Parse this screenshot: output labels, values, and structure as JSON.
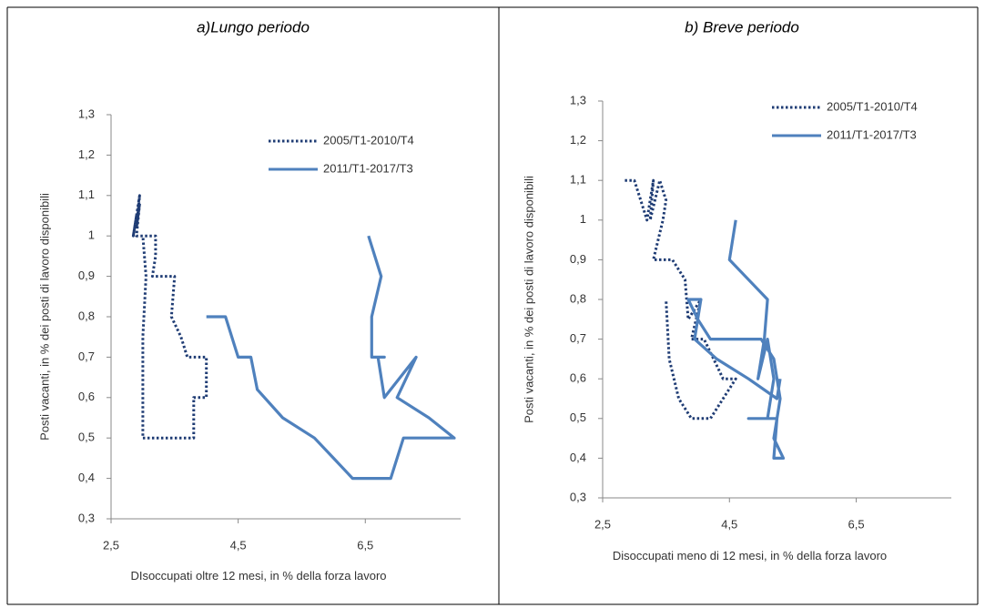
{
  "chart_data": [
    {
      "type": "line",
      "title": "a)Lungo periodo",
      "x_label": "DIsoccupati oltre 12 mesi, in % della forza lavoro",
      "y_label": "Posti vacanti, in % dei posti di lavoro disponibili",
      "xlim": [
        2.5,
        8.0
      ],
      "xticks": [
        {
          "value": 2.5,
          "label": "2,5"
        },
        {
          "value": 4.5,
          "label": "4,5"
        },
        {
          "value": 6.5,
          "label": "6,5"
        }
      ],
      "ylim": [
        0.3,
        1.3
      ],
      "yticks": [
        {
          "value": 0.3,
          "label": "0,3"
        },
        {
          "value": 0.4,
          "label": "0,4"
        },
        {
          "value": 0.5,
          "label": "0,5"
        },
        {
          "value": 0.6,
          "label": "0,6"
        },
        {
          "value": 0.7,
          "label": "0,7"
        },
        {
          "value": 0.8,
          "label": "0,8"
        },
        {
          "value": 0.9,
          "label": "0,9"
        },
        1,
        {
          "value": 1.1,
          "label": "1,1"
        },
        {
          "value": 1.2,
          "label": "1,2"
        },
        {
          "value": 1.3,
          "label": "1,3"
        }
      ],
      "legend": "upper right",
      "series": [
        {
          "name": "2005/T1-2010/T4",
          "color": "#1f3c74",
          "style": "dotted",
          "x": [
            2.9,
            2.85,
            2.95,
            2.9,
            2.95,
            2.9,
            3.1,
            3.2,
            3.2,
            3.15,
            3.5,
            3.45,
            3.6,
            3.7,
            4.0,
            4.0,
            3.8,
            3.8,
            3.5,
            3.0,
            3.0,
            3.0,
            3.05,
            3.0
          ],
          "values": [
            1.05,
            1.0,
            1.1,
            1.02,
            1.08,
            1.0,
            1.0,
            1.0,
            0.95,
            0.9,
            0.9,
            0.8,
            0.75,
            0.7,
            0.7,
            0.6,
            0.6,
            0.5,
            0.5,
            0.5,
            0.6,
            0.75,
            0.9,
            1.0
          ]
        },
        {
          "name": "2011/T1-2017/T3",
          "color": "#4f81bd",
          "style": "solid",
          "x": [
            4.0,
            4.3,
            4.5,
            4.7,
            4.8,
            5.2,
            5.7,
            6.0,
            6.3,
            6.6,
            6.9,
            7.1,
            7.4,
            7.9,
            7.5,
            7.0,
            7.3,
            6.8,
            6.7,
            6.8,
            6.6,
            6.6,
            6.75,
            6.55
          ],
          "values": [
            0.8,
            0.8,
            0.7,
            0.7,
            0.62,
            0.55,
            0.5,
            0.45,
            0.4,
            0.4,
            0.4,
            0.5,
            0.5,
            0.5,
            0.55,
            0.6,
            0.7,
            0.6,
            0.7,
            0.7,
            0.7,
            0.8,
            0.9,
            1.0
          ]
        }
      ]
    },
    {
      "type": "line",
      "title": "b) Breve periodo",
      "x_label": "Disoccupati meno di 12 mesi, in % della forza lavoro",
      "y_label": "Posti vacanti, in % dei posti di lavoro disponibili",
      "xlim": [
        2.5,
        8.0
      ],
      "xticks": [
        {
          "value": 2.5,
          "label": "2,5"
        },
        {
          "value": 4.5,
          "label": "4,5"
        },
        {
          "value": 6.5,
          "label": "6,5"
        }
      ],
      "ylim": [
        0.3,
        1.3
      ],
      "yticks": [
        {
          "value": 0.3,
          "label": "0,3"
        },
        {
          "value": 0.4,
          "label": "0,4"
        },
        {
          "value": 0.5,
          "label": "0,5"
        },
        {
          "value": 0.6,
          "label": "0,6"
        },
        {
          "value": 0.7,
          "label": "0,7"
        },
        {
          "value": 0.8,
          "label": "0,8"
        },
        {
          "value": 0.9,
          "label": "0,9"
        },
        1,
        {
          "value": 1.1,
          "label": "1,1"
        },
        {
          "value": 1.2,
          "label": "1,2"
        },
        {
          "value": 1.3,
          "label": "1,3"
        }
      ],
      "legend": "upper right",
      "series": [
        {
          "name": "2005/T1-2010/T4",
          "color": "#1f3c74",
          "style": "dotted",
          "x": [
            2.85,
            3.0,
            3.1,
            3.2,
            3.3,
            3.25,
            3.4,
            3.5,
            3.45,
            3.3,
            3.6,
            3.8,
            3.85,
            4.05,
            3.9,
            4.1,
            4.4,
            4.6,
            4.4,
            4.2,
            3.9,
            3.7,
            3.55,
            3.5
          ],
          "values": [
            1.1,
            1.1,
            1.05,
            1.0,
            1.1,
            1.0,
            1.1,
            1.05,
            1.0,
            0.9,
            0.9,
            0.85,
            0.75,
            0.8,
            0.7,
            0.7,
            0.6,
            0.6,
            0.55,
            0.5,
            0.5,
            0.55,
            0.65,
            0.8
          ]
        },
        {
          "name": "2011/T1-2017/T3",
          "color": "#4f81bd",
          "style": "solid",
          "x": [
            4.6,
            4.5,
            4.8,
            5.1,
            5.05,
            4.95,
            5.1,
            5.2,
            5.1,
            4.8,
            5.25,
            5.2,
            5.35,
            5.2,
            5.3,
            5.2,
            5.0,
            4.6,
            4.2,
            4.0,
            3.85,
            4.05,
            3.95,
            4.3,
            4.8,
            5.25,
            5.3
          ],
          "values": [
            1.0,
            0.9,
            0.85,
            0.8,
            0.7,
            0.6,
            0.7,
            0.6,
            0.5,
            0.5,
            0.5,
            0.4,
            0.4,
            0.45,
            0.55,
            0.65,
            0.7,
            0.7,
            0.7,
            0.75,
            0.8,
            0.8,
            0.7,
            0.65,
            0.6,
            0.55,
            0.6
          ]
        }
      ]
    }
  ]
}
